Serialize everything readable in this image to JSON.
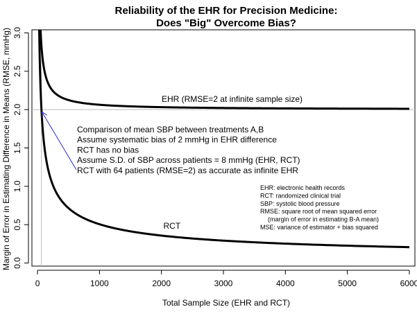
{
  "chart_data": {
    "type": "line",
    "title_line1": "Reliability of the EHR for Precision Medicine:",
    "title_line2": "Does \"Big\" Overcome Bias?",
    "xlabel": "Total Sample Size (EHR and RCT)",
    "ylabel": "Margin of Error in Estimating Difference in Means (RMSE, mmHg)",
    "xlim": [
      -90,
      6090
    ],
    "ylim": [
      -0.04,
      3.04
    ],
    "x_ticks": [
      0,
      1000,
      2000,
      3000,
      4000,
      5000,
      6000
    ],
    "x_tick_labels": [
      "0",
      "1000",
      "2000",
      "3000",
      "4000",
      "5000",
      "6000"
    ],
    "y_ticks": [
      0,
      0.5,
      1,
      1.5,
      2,
      2.5,
      3
    ],
    "y_tick_labels": [
      "0.0",
      "0.5",
      "1.0",
      "1.5",
      "2.0",
      "2.5",
      "3.0"
    ],
    "model": {
      "sd": 8,
      "bias": 2,
      "n_min": 4,
      "n_max": 6000
    },
    "reference_lines": {
      "h": 2,
      "v": 64
    },
    "series": [
      {
        "label": "EHR (RMSE=2 at infinite sample size)",
        "label_at": [
          3140,
          2.1
        ],
        "bias": 2
      },
      {
        "label": "RCT",
        "label_at": [
          2170,
          0.45
        ],
        "bias": 0
      }
    ],
    "annotation": {
      "lines": [
        "Comparison of mean SBP between treatments A,B",
        "Assume systematic bias of 2 mmHg in EHR difference",
        "RCT has no bias",
        "Assume S.D. of SBP across patients = 8 mmHg (EHR, RCT)",
        "RCT with 64 patients (RMSE=2) as accurate as infinite EHR"
      ],
      "arrow_to": [
        64,
        2.0
      ]
    },
    "glossary": [
      "EHR: electronic health records",
      "RCT: randomized clinical trial",
      "SBP: systolic blood pressure",
      "RMSE: square root of mean squared error",
      "(margin of error in estimating B-A mean)",
      "MSE: variance of estimator + bias squared"
    ]
  }
}
